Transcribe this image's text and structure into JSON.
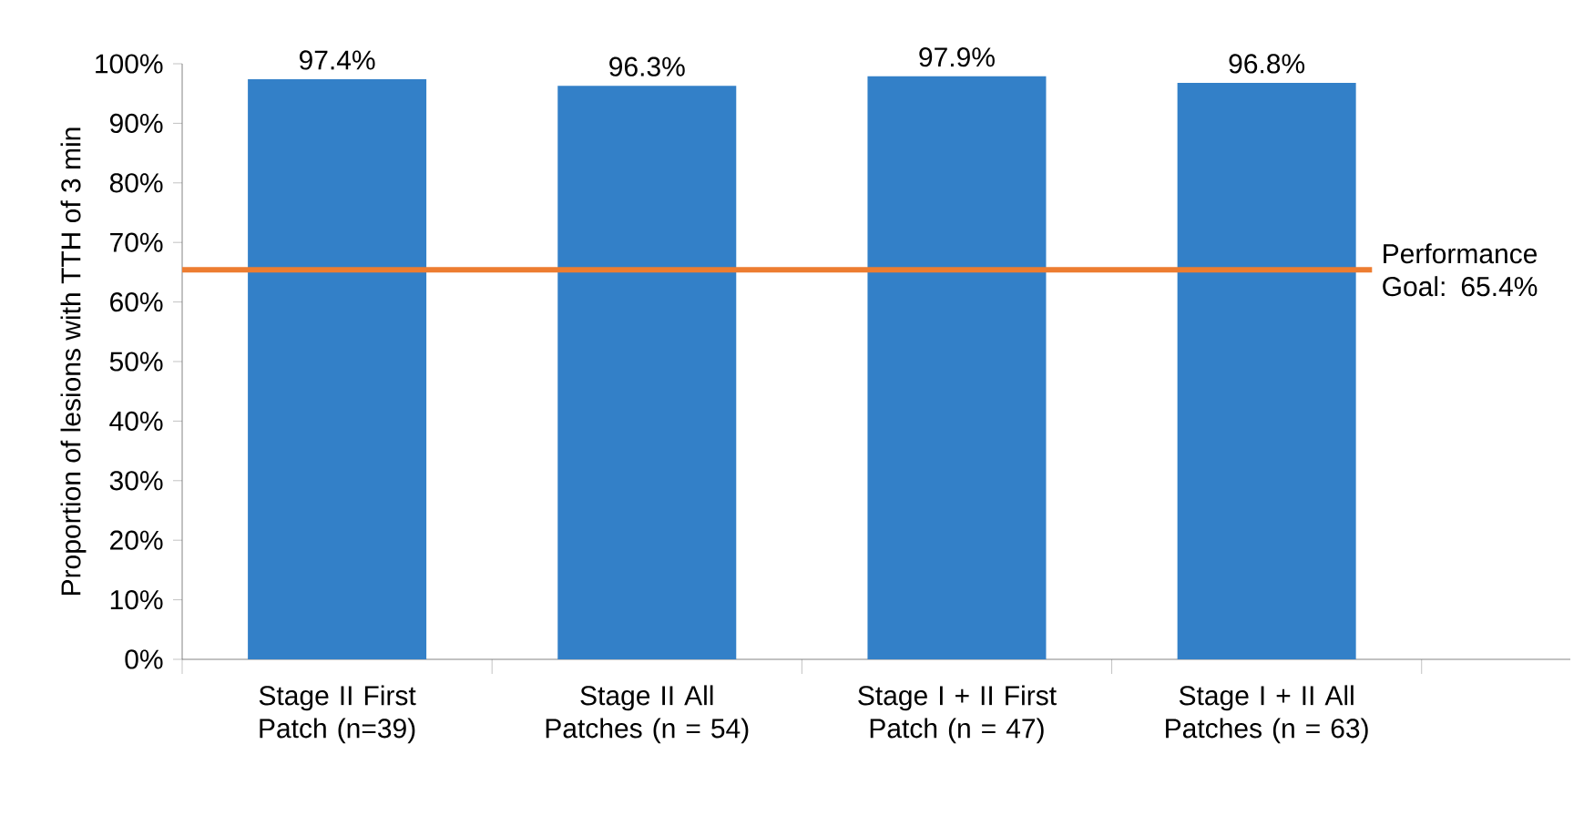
{
  "chart_data": {
    "type": "bar",
    "ylabel": "Proportion of lesions with TTH of 3 min",
    "categories": [
      "Stage II First Patch (n=39)",
      "Stage II All Patches (n = 54)",
      "Stage I + II First Patch (n = 47)",
      "Stage I + II All Patches (n = 63)"
    ],
    "values": [
      97.4,
      96.3,
      97.9,
      96.8
    ],
    "value_labels": [
      "97.4%",
      "96.3%",
      "97.9%",
      "96.8%"
    ],
    "color": "#3380c8",
    "ylim": [
      0,
      100
    ],
    "yticks": [
      {
        "value": 0,
        "label": "0%"
      },
      {
        "value": 10,
        "label": "10%"
      },
      {
        "value": 20,
        "label": "20%"
      },
      {
        "value": 30,
        "label": "30%"
      },
      {
        "value": 40,
        "label": "40%"
      },
      {
        "value": 50,
        "label": "50%"
      },
      {
        "value": 60,
        "label": "60%"
      },
      {
        "value": 70,
        "label": "70%"
      },
      {
        "value": 80,
        "label": "80%"
      },
      {
        "value": 90,
        "label": "90%"
      },
      {
        "value": 100,
        "label": "100%"
      }
    ],
    "ref_lines": [
      {
        "axis": "y",
        "value": 65.4,
        "label": "Performance Goal: 65.4%",
        "color": "#ed7d31"
      }
    ],
    "grid": false
  }
}
